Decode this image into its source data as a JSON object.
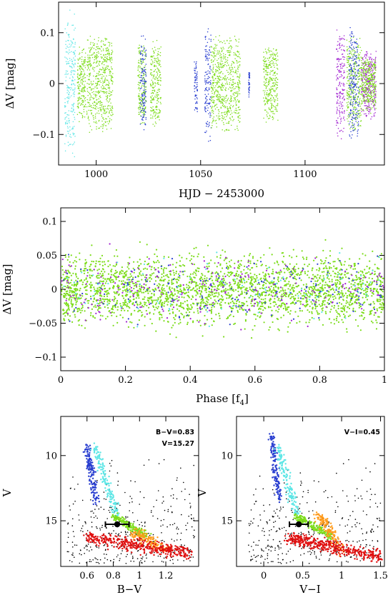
{
  "colors": {
    "green": "#7cdc1a",
    "cyan": "#5de6e6",
    "blue": "#2a3fd0",
    "magenta": "#a020d0",
    "orange": "#ff9a1a",
    "red": "#e01010",
    "black": "#000000"
  },
  "chart_data": [
    {
      "type": "scatter",
      "xlabel": "HJD − 2453000",
      "ylabel": "ΔV [mag]",
      "xlim": [
        982,
        1138
      ],
      "ylim": [
        0.16,
        -0.16
      ],
      "xticks": [
        {
          "v": 1000,
          "t": "1000"
        },
        {
          "v": 1050,
          "t": "1050"
        },
        {
          "v": 1100,
          "t": "1100"
        }
      ],
      "yticks": [
        {
          "v": -0.1,
          "t": "−0.1"
        },
        {
          "v": 0,
          "t": "0"
        },
        {
          "v": 0.1,
          "t": "0.1"
        }
      ],
      "series_colors": [
        "cyan",
        "green",
        "blue",
        "magenta"
      ],
      "segments": [
        {
          "x0": 985,
          "x1": 990,
          "color": "cyan",
          "spread": 0.15
        },
        {
          "x0": 991,
          "x1": 995,
          "color": "green",
          "spread": 0.08
        },
        {
          "x0": 995.5,
          "x1": 1008,
          "color": "green",
          "spread": 0.1
        },
        {
          "x0": 1020,
          "x1": 1024,
          "color": "green",
          "spread": 0.09
        },
        {
          "x0": 1021,
          "x1": 1024,
          "color": "blue",
          "spread": 0.1
        },
        {
          "x0": 1026,
          "x1": 1031,
          "color": "green",
          "spread": 0.09
        },
        {
          "x0": 1047,
          "x1": 1048.5,
          "color": "blue",
          "spread": 0.06
        },
        {
          "x0": 1052,
          "x1": 1055,
          "color": "blue",
          "spread": 0.12
        },
        {
          "x0": 1055,
          "x1": 1069,
          "color": "green",
          "spread": 0.1
        },
        {
          "x0": 1073,
          "x1": 1073.5,
          "color": "blue",
          "spread": 0.03
        },
        {
          "x0": 1080,
          "x1": 1087,
          "color": "green",
          "spread": 0.08
        },
        {
          "x0": 1115,
          "x1": 1119,
          "color": "magenta",
          "spread": 0.11
        },
        {
          "x0": 1120,
          "x1": 1127,
          "color": "green",
          "spread": 0.1
        },
        {
          "x0": 1121,
          "x1": 1126,
          "color": "blue",
          "spread": 0.12
        },
        {
          "x0": 1127,
          "x1": 1134,
          "color": "magenta",
          "spread": 0.07
        },
        {
          "x0": 1127,
          "x1": 1134,
          "color": "green",
          "spread": 0.06
        }
      ]
    },
    {
      "type": "scatter",
      "xlabel": "Phase [f",
      "xlabel_sub": "4",
      "xlabel_end": "]",
      "ylabel": "ΔV [mag]",
      "xlim": [
        0,
        1
      ],
      "ylim": [
        0.12,
        -0.12
      ],
      "xticks": [
        {
          "v": 0,
          "t": "0"
        },
        {
          "v": 0.2,
          "t": "0.2"
        },
        {
          "v": 0.4,
          "t": "0.4"
        },
        {
          "v": 0.6,
          "t": "0.6"
        },
        {
          "v": 0.8,
          "t": "0.8"
        },
        {
          "v": 1,
          "t": "1"
        }
      ],
      "yticks": [
        {
          "v": -0.1,
          "t": "−0.1"
        },
        {
          "v": -0.05,
          "t": "−0.05"
        },
        {
          "v": 0,
          "t": "0"
        },
        {
          "v": 0.05,
          "t": "0.05"
        },
        {
          "v": 0.1,
          "t": "0.1"
        }
      ],
      "point_mix": [
        {
          "color": "green",
          "n": 2600
        },
        {
          "color": "blue",
          "n": 170
        },
        {
          "color": "magenta",
          "n": 230
        },
        {
          "color": "cyan",
          "n": 90
        }
      ],
      "spread": 0.1
    },
    {
      "type": "scatter",
      "xlabel": "B−V",
      "ylabel": "V",
      "xlim": [
        0.4,
        1.45
      ],
      "ylim": [
        7,
        18.5
      ],
      "xticks": [
        {
          "v": 0.6,
          "t": "0.6"
        },
        {
          "v": 0.8,
          "t": "0.8"
        },
        {
          "v": 1,
          "t": "1"
        },
        {
          "v": 1.2,
          "t": "1.2"
        }
      ],
      "yticks": [
        {
          "v": 10,
          "t": "10"
        },
        {
          "v": 15,
          "t": "15"
        }
      ],
      "annotations": [
        "B−V=0.83",
        "V=15.27"
      ],
      "marked_star": {
        "x": 0.83,
        "y": 15.27,
        "xerr": 0.09
      },
      "branches": [
        {
          "color": "blue",
          "n": 150,
          "x0": 0.6,
          "x1": 0.67,
          "y0": 9.3,
          "y1": 13.5,
          "sx": 0.03,
          "sy": 0.3
        },
        {
          "color": "cyan",
          "n": 150,
          "x0": 0.66,
          "x1": 0.83,
          "y0": 9.3,
          "y1": 14.6,
          "sx": 0.03,
          "sy": 0.3
        },
        {
          "color": "green",
          "n": 180,
          "x0": 0.8,
          "x1": 1.05,
          "y0": 14.6,
          "y1": 16.2,
          "sx": 0.035,
          "sy": 0.25
        },
        {
          "color": "orange",
          "n": 140,
          "x0": 0.95,
          "x1": 1.2,
          "y0": 15.8,
          "y1": 17.3,
          "sx": 0.06,
          "sy": 0.35
        },
        {
          "color": "red",
          "n": 420,
          "x0": 0.6,
          "x1": 1.38,
          "y0": 16.3,
          "y1": 17.5,
          "sx": 0.05,
          "sy": 0.5
        }
      ],
      "field_black": {
        "n": 380,
        "x0": 0.45,
        "x1": 1.42,
        "y0": 10,
        "y1": 18.3
      }
    },
    {
      "type": "scatter",
      "xlabel": "V−I",
      "ylabel": "V",
      "xlim": [
        -0.35,
        1.55
      ],
      "ylim": [
        7,
        18.5
      ],
      "xticks": [
        {
          "v": 0,
          "t": "0"
        },
        {
          "v": 0.5,
          "t": "0.5"
        },
        {
          "v": 1,
          "t": "1"
        },
        {
          "v": 1.5,
          "t": "1.5"
        }
      ],
      "yticks": [
        {
          "v": 10,
          "t": "10"
        },
        {
          "v": 15,
          "t": "15"
        }
      ],
      "annotations": [
        "V−I=0.45"
      ],
      "marked_star": {
        "x": 0.45,
        "y": 15.27,
        "xerr": 0.12
      },
      "branches": [
        {
          "color": "blue",
          "n": 150,
          "x0": 0.1,
          "x1": 0.2,
          "y0": 8.3,
          "y1": 13.5,
          "sx": 0.04,
          "sy": 0.3
        },
        {
          "color": "cyan",
          "n": 150,
          "x0": 0.18,
          "x1": 0.42,
          "y0": 9.3,
          "y1": 14.6,
          "sx": 0.05,
          "sy": 0.3
        },
        {
          "color": "green",
          "n": 180,
          "x0": 0.4,
          "x1": 0.85,
          "y0": 14.6,
          "y1": 16.2,
          "sx": 0.05,
          "sy": 0.25
        },
        {
          "color": "orange",
          "n": 140,
          "x0": 0.7,
          "x1": 1.0,
          "y0": 14.5,
          "y1": 17.3,
          "sx": 0.08,
          "sy": 0.35
        },
        {
          "color": "red",
          "n": 420,
          "x0": 0.3,
          "x1": 1.5,
          "y0": 16.3,
          "y1": 17.8,
          "sx": 0.07,
          "sy": 0.5
        }
      ],
      "field_black": {
        "n": 380,
        "x0": -0.2,
        "x1": 1.5,
        "y0": 10,
        "y1": 18.3
      }
    }
  ]
}
